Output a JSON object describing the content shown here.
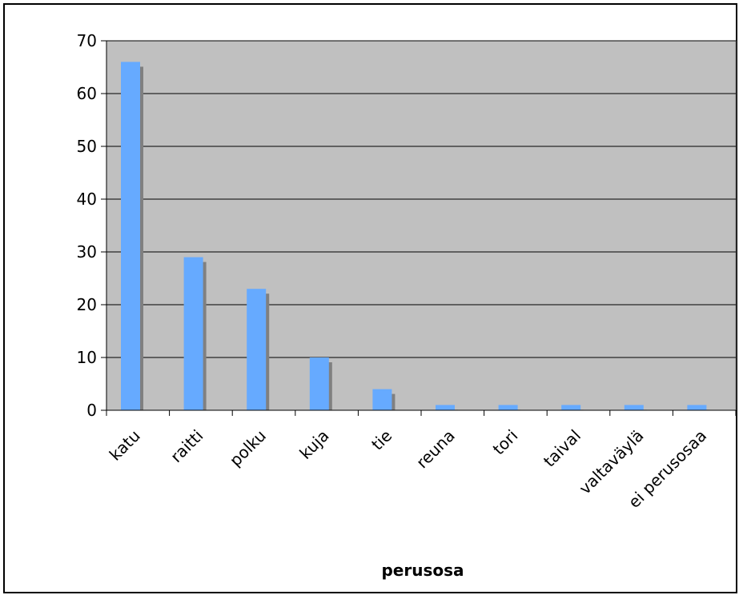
{
  "chart_data": {
    "type": "bar",
    "categories": [
      "katu",
      "raitti",
      "polku",
      "kuja",
      "tie",
      "reuna",
      "tori",
      "taival",
      "valtaväylä",
      "ei perusosaa"
    ],
    "values": [
      66,
      29,
      23,
      10,
      4,
      1,
      1,
      1,
      1,
      1
    ],
    "title": "",
    "xlabel": "perusosa",
    "ylabel": "",
    "ylim": [
      0,
      70
    ],
    "yticks": [
      0,
      10,
      20,
      30,
      40,
      50,
      60,
      70
    ],
    "grid": true,
    "legend": "none",
    "colors": {
      "bar": "#66aaff",
      "bar_shadow": "#808080",
      "plot_background": "#c0c0c0",
      "gridline": "#000000"
    }
  }
}
